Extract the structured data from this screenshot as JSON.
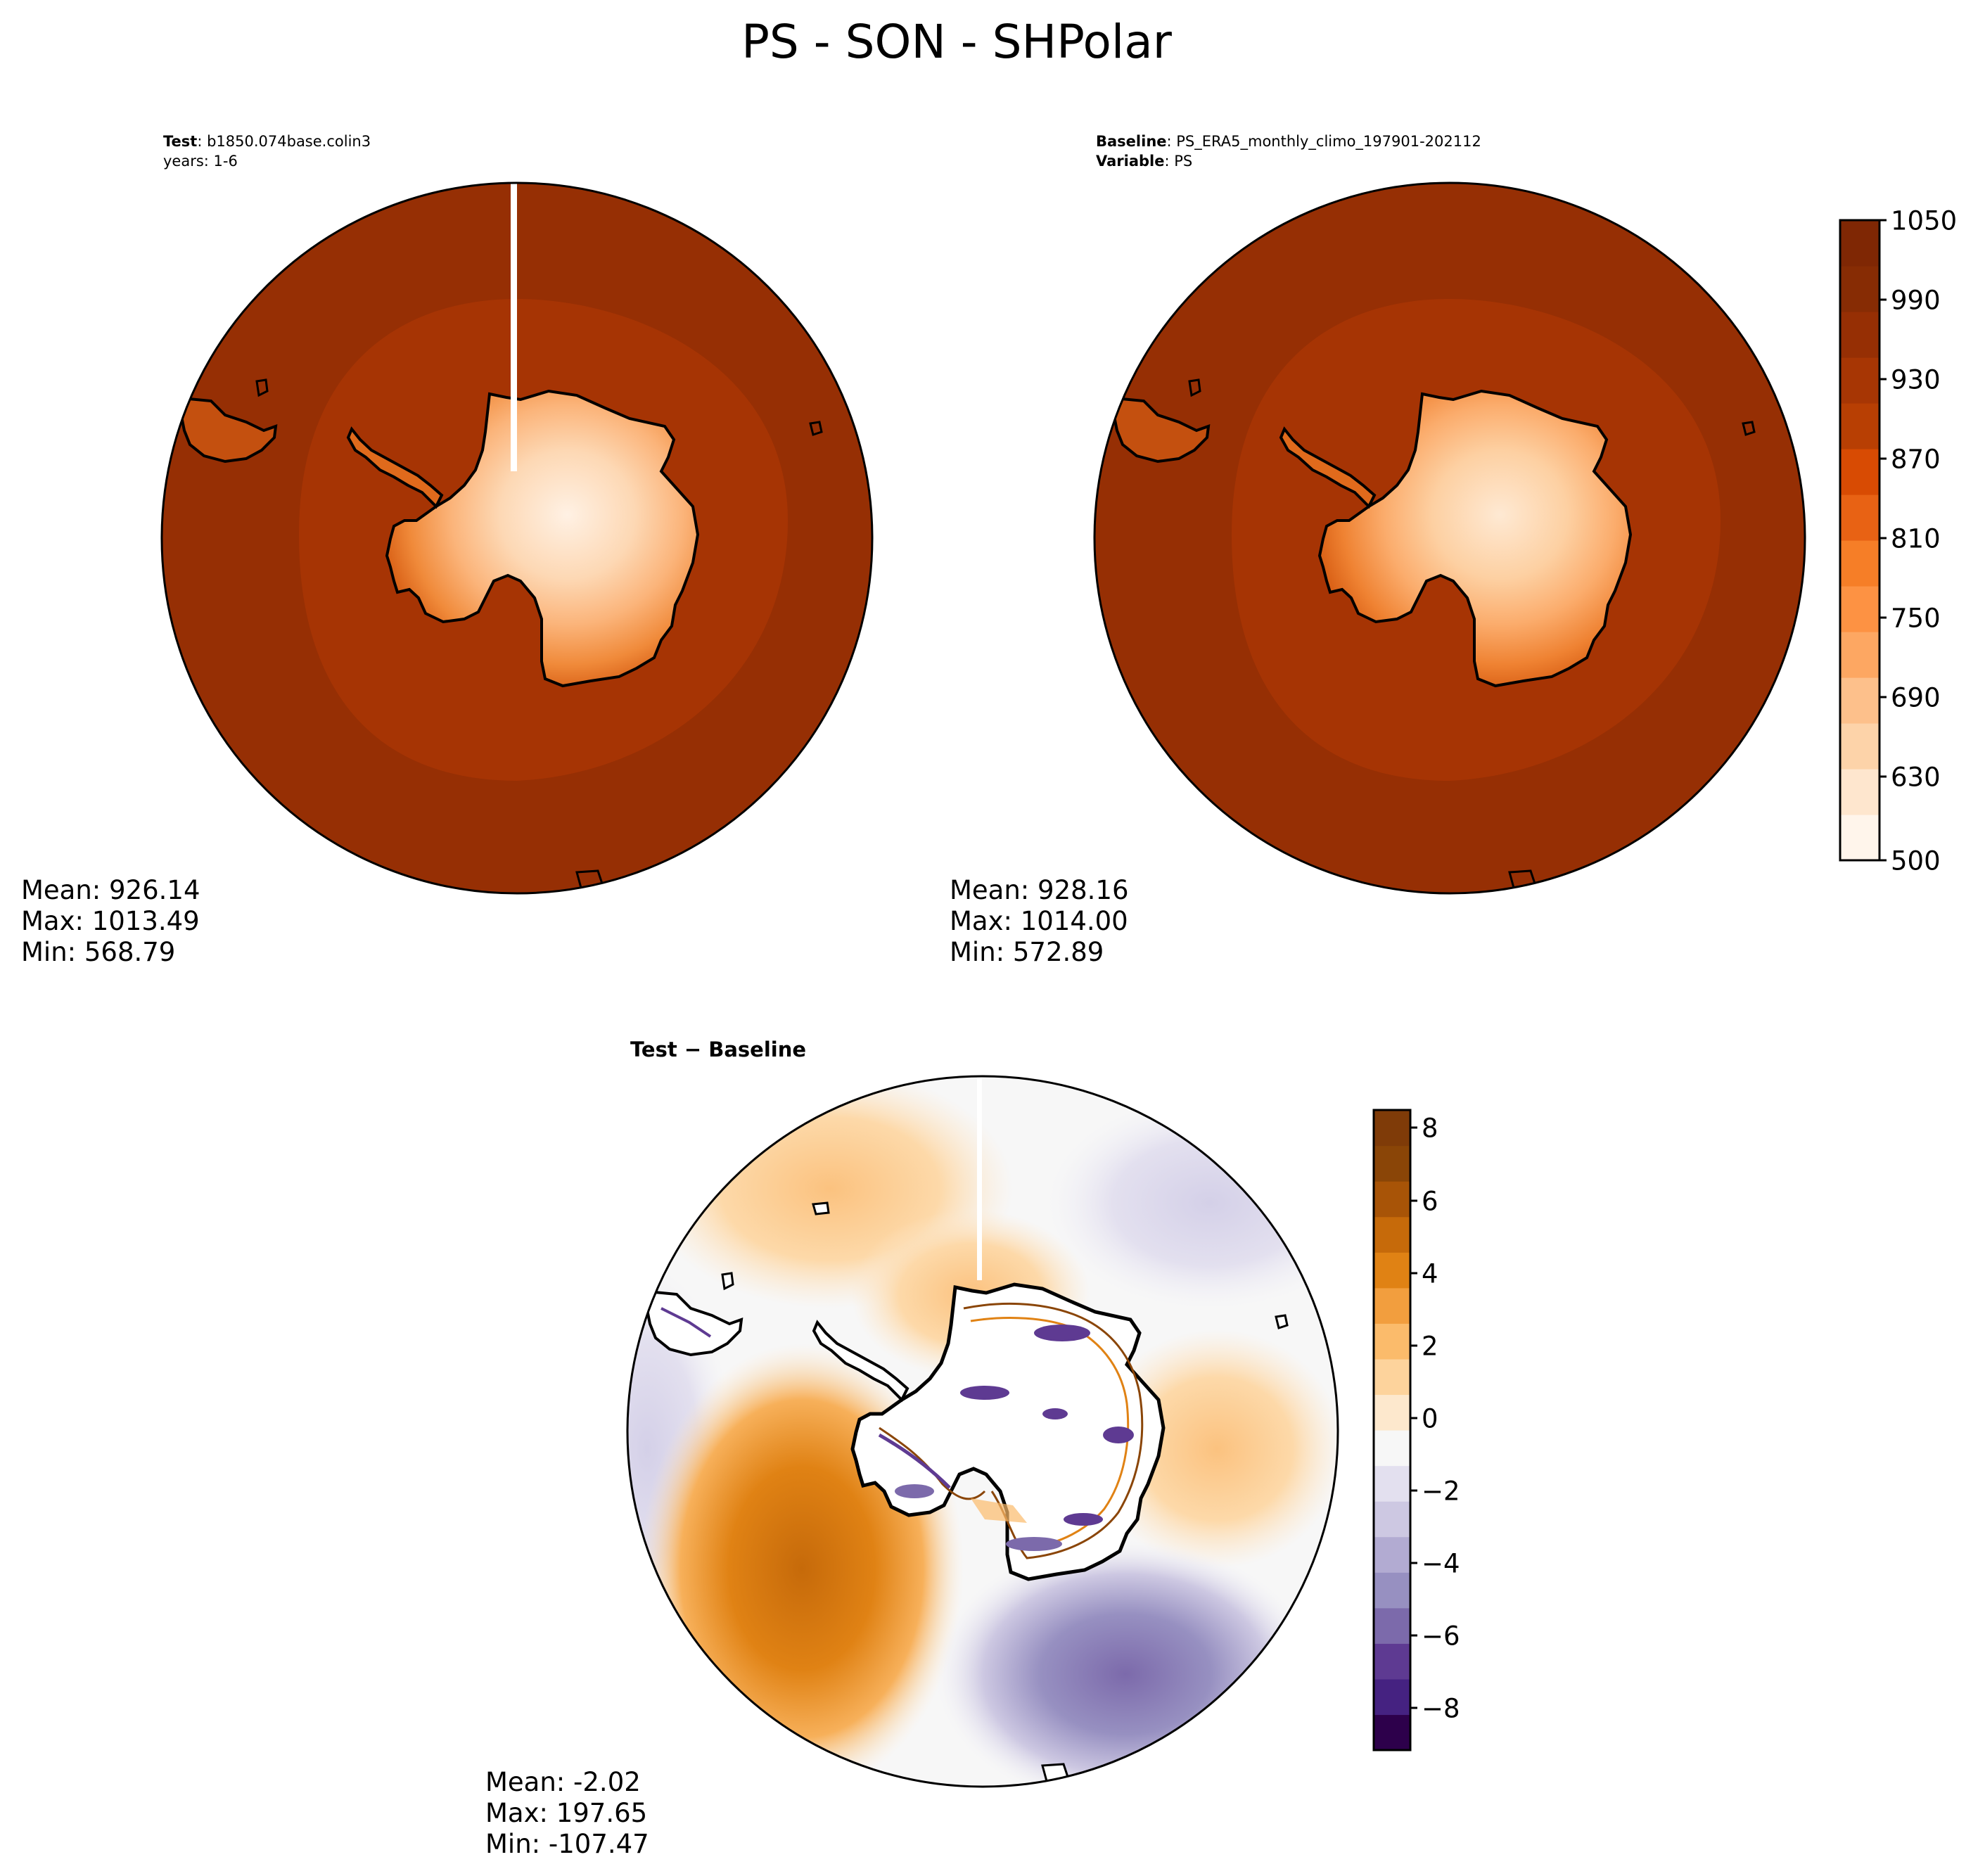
{
  "figure": {
    "title": "PS - SON - SHPolar"
  },
  "panels": {
    "test": {
      "label_bold": "Test",
      "label_value": ": b1850.074base.colin3",
      "years": "years: 1-6",
      "stats": {
        "mean": "Mean: 926.14",
        "max": "Max: 1013.49",
        "min": "Min: 568.79"
      }
    },
    "baseline": {
      "label_bold": "Baseline",
      "label_value": ": PS_ERA5_monthly_climo_197901-202112",
      "variable_bold": "Variable",
      "variable_value": ": PS",
      "stats": {
        "mean": "Mean: 928.16",
        "max": "Max: 1014.00",
        "min": "Min: 572.89"
      }
    },
    "diff": {
      "label": "Test − Baseline",
      "stats": {
        "mean": "Mean: -2.02",
        "max": "Max: 197.65",
        "min": "Min: -107.47"
      }
    }
  },
  "colorbars": {
    "absolute": {
      "ticks": [
        "1050",
        "990",
        "930",
        "870",
        "810",
        "750",
        "690",
        "630",
        "500"
      ],
      "colors": [
        "#fff5eb",
        "#fee6ce",
        "#fdd3a9",
        "#fdc08b",
        "#fda762",
        "#fd9243",
        "#f67e27",
        "#e86214",
        "#d84b03",
        "#b83f03",
        "#a73604",
        "#962f04",
        "#872c04",
        "#7f2704"
      ]
    },
    "difference": {
      "ticks": [
        "8",
        "6",
        "4",
        "2",
        "0",
        "−2",
        "−4",
        "−6",
        "−8"
      ],
      "colors": [
        "#2d004b",
        "#452281",
        "#5e3a92",
        "#7c6aab",
        "#9790c1",
        "#b2abd2",
        "#cdc8e2",
        "#e3e0ef",
        "#f7f7f7",
        "#fde8cd",
        "#fdd39c",
        "#fbbb6b",
        "#f29e3e",
        "#e08214",
        "#c66a0a",
        "#a85407",
        "#8a4507",
        "#7f3b08"
      ]
    }
  },
  "colors": {
    "ocean_test": "#962f04",
    "ring_test": "#a63404",
    "land_high": "#fde8d4",
    "diff_neutral": "#f7f7f7"
  }
}
